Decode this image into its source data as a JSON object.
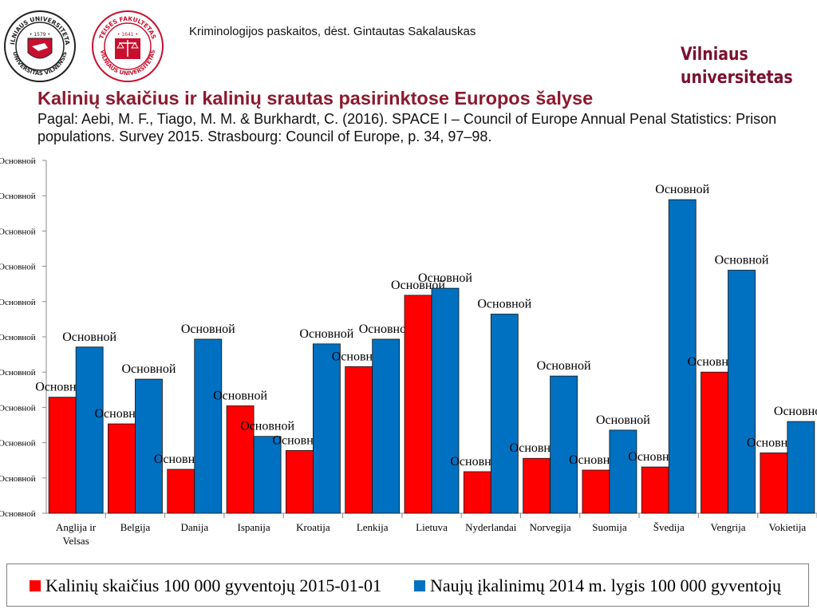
{
  "logos": {
    "university_seal": {
      "icon": "vilnius-university-seal-icon",
      "lettering": "VILNIAUS UNIVERSITETAS 1579 UNIVERSITAS VILNENSIS"
    },
    "faculty_seal": {
      "icon": "law-faculty-seal-icon",
      "lettering": "TEISĖS FAKULTETAS 1641 VILNIAUS UNIVERSITETAS"
    }
  },
  "header": {
    "course": "Kriminologijos paskaitos, dėst. Gintautas Sakalauskas",
    "brand_line1": "Vilniaus",
    "brand_line2": "universitetas"
  },
  "slide": {
    "title": "Kalinių skaičius ir kalinių srautas pasirinktose Europos šalyse",
    "subtitle": "Pagal: Aebi, M. F., Tiago, M. M. & Burkhardt, C. (2016). SPACE I – Council of Europe Annual Penal Statistics: Prison populations. Survey 2015. Strasbourg: Council of Europe, p. 34, 97–98."
  },
  "colors": {
    "series1": "#ff0000",
    "series2": "#0070c0",
    "brand": "#7a1030",
    "title": "#8b1a2e"
  },
  "chart_data": {
    "type": "bar",
    "categories": [
      "Anglija ir Velsas",
      "Belgija",
      "Danija",
      "Ispanija",
      "Kroatija",
      "Lenkija",
      "Lietuva",
      "Nyderlandai",
      "Norvegija",
      "Suomija",
      "Švedija",
      "Vengrija",
      "Vokietija"
    ],
    "series": [
      {
        "name": "Kalinių skaičius 100 000 gyventojų 2015-01-01",
        "values": [
          148,
          114,
          56,
          137,
          80,
          187,
          278,
          53,
          70,
          55,
          59,
          180,
          77
        ]
      },
      {
        "name": "Naujų įkalinimų 2014 m. lygis 100 000 gyventojų",
        "values": [
          212,
          171,
          222,
          98,
          216,
          222,
          287,
          254,
          175,
          106,
          400,
          310,
          117
        ]
      }
    ],
    "data_label": "Основной",
    "y_tick_label": "Основной",
    "ylim": [
      0,
      450
    ],
    "y_ticks": 10,
    "grid": false,
    "legend_position": "bottom"
  }
}
